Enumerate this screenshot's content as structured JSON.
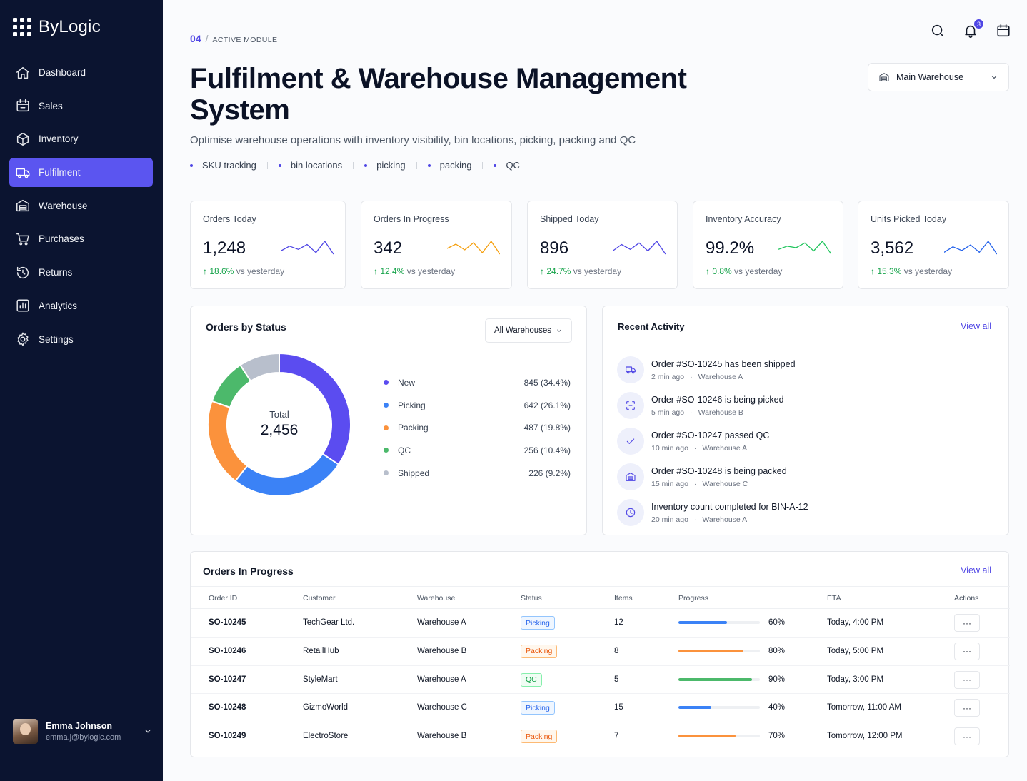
{
  "brand": {
    "name": "ByLogic"
  },
  "sidebar": {
    "items": [
      {
        "label": "Dashboard",
        "icon": "home-icon",
        "active": false
      },
      {
        "label": "Sales",
        "icon": "sales-icon",
        "active": false
      },
      {
        "label": "Inventory",
        "icon": "box-icon",
        "active": false
      },
      {
        "label": "Fulfilment",
        "icon": "truck-icon",
        "active": true
      },
      {
        "label": "Warehouse",
        "icon": "warehouse-icon",
        "active": false
      },
      {
        "label": "Purchases",
        "icon": "cart-icon",
        "active": false
      },
      {
        "label": "Returns",
        "icon": "returns-icon",
        "active": false
      },
      {
        "label": "Analytics",
        "icon": "analytics-icon",
        "active": false
      },
      {
        "label": "Settings",
        "icon": "gear-icon",
        "active": false
      }
    ],
    "user": {
      "name": "Emma Johnson",
      "email": "emma.j@bylogic.com"
    }
  },
  "header": {
    "crumb_number": "04",
    "crumb_separator": "/",
    "crumb_text": "ACTIVE MODULE",
    "title": "Fulfilment & Warehouse Management System",
    "subtitle": "Optimise warehouse operations with inventory visibility, bin locations, picking, packing and QC",
    "tags": [
      "SKU tracking",
      "bin locations",
      "picking",
      "packing",
      "QC"
    ],
    "notification_count": "3",
    "warehouse_select": "Main Warehouse"
  },
  "kpis": [
    {
      "label": "Orders Today",
      "value": "1,248",
      "delta": "18.6%",
      "delta_suffix": "vs yesterday",
      "color": "#4f46e5",
      "spark": [
        6,
        9,
        7,
        10,
        5,
        12,
        4
      ]
    },
    {
      "label": "Orders In Progress",
      "value": "342",
      "delta": "12.4%",
      "delta_suffix": "vs yesterday",
      "color": "#f59e0b",
      "spark": [
        7,
        10,
        6,
        11,
        4,
        12,
        3
      ]
    },
    {
      "label": "Shipped Today",
      "value": "896",
      "delta": "24.7%",
      "delta_suffix": "vs yesterday",
      "color": "#4f46e5",
      "spark": [
        5,
        9,
        6,
        10,
        5,
        11,
        3
      ]
    },
    {
      "label": "Inventory Accuracy",
      "value": "99.2%",
      "delta": "0.8%",
      "delta_suffix": "vs yesterday",
      "color": "#22c55e",
      "spark": [
        7,
        9,
        8,
        11,
        6,
        12,
        4
      ]
    },
    {
      "label": "Units Picked Today",
      "value": "3,562",
      "delta": "15.3%",
      "delta_suffix": "vs yesterday",
      "color": "#2563eb",
      "spark": [
        5,
        8,
        6,
        9,
        5,
        11,
        4
      ]
    }
  ],
  "orders_by_status": {
    "title": "Orders by Status",
    "filter": "All Warehouses",
    "total_label": "Total",
    "total_value": "2,456",
    "chart_data": {
      "type": "pie",
      "categories": [
        "New",
        "Picking",
        "Packing",
        "QC",
        "Shipped"
      ],
      "values": [
        845,
        642,
        487,
        256,
        226
      ],
      "labels": [
        "845 (34.4%)",
        "642 (26.1%)",
        "487 (19.8%)",
        "256 (10.4%)",
        "226 (9.2%)"
      ],
      "colors": [
        "#5b4cf0",
        "#3b82f6",
        "#fb923c",
        "#4cb96b",
        "#b8bfcc"
      ],
      "legend": "right"
    }
  },
  "recent_activity": {
    "title": "Recent Activity",
    "view_all": "View all",
    "items": [
      {
        "icon": "truck-icon",
        "text": "Order #SO-10245 has been shipped",
        "time": "2 min ago",
        "warehouse": "Warehouse A"
      },
      {
        "icon": "scan-icon",
        "text": "Order #SO-10246 is being picked",
        "time": "5 min ago",
        "warehouse": "Warehouse B"
      },
      {
        "icon": "check-icon",
        "text": "Order #SO-10247 passed QC",
        "time": "10 min ago",
        "warehouse": "Warehouse A"
      },
      {
        "icon": "warehouse-icon",
        "text": "Order #SO-10248 is being packed",
        "time": "15 min ago",
        "warehouse": "Warehouse C"
      },
      {
        "icon": "clock-icon",
        "text": "Inventory count completed for BIN-A-12",
        "time": "20 min ago",
        "warehouse": "Warehouse A"
      }
    ]
  },
  "orders_in_progress": {
    "title": "Orders In Progress",
    "view_all": "View all",
    "columns": [
      "Order ID",
      "Customer",
      "Warehouse",
      "Status",
      "Items",
      "Progress",
      "ETA",
      "Actions"
    ],
    "rows": [
      {
        "id": "SO-10245",
        "customer": "TechGear Ltd.",
        "warehouse": "Warehouse A",
        "status": "Picking",
        "items": "12",
        "progress": 60,
        "progress_label": "60%",
        "eta": "Today, 4:00 PM",
        "color": "#3b82f6"
      },
      {
        "id": "SO-10246",
        "customer": "RetailHub",
        "warehouse": "Warehouse B",
        "status": "Packing",
        "items": "8",
        "progress": 80,
        "progress_label": "80%",
        "eta": "Today, 5:00 PM",
        "color": "#fb923c"
      },
      {
        "id": "SO-10247",
        "customer": "StyleMart",
        "warehouse": "Warehouse A",
        "status": "QC",
        "items": "5",
        "progress": 90,
        "progress_label": "90%",
        "eta": "Today, 3:00 PM",
        "color": "#4cb96b"
      },
      {
        "id": "SO-10248",
        "customer": "GizmoWorld",
        "warehouse": "Warehouse C",
        "status": "Picking",
        "items": "15",
        "progress": 40,
        "progress_label": "40%",
        "eta": "Tomorrow, 11:00 AM",
        "color": "#3b82f6"
      },
      {
        "id": "SO-10249",
        "customer": "ElectroStore",
        "warehouse": "Warehouse B",
        "status": "Packing",
        "items": "7",
        "progress": 70,
        "progress_label": "70%",
        "eta": "Tomorrow, 12:00 PM",
        "color": "#fb923c"
      }
    ],
    "actions_label": "···"
  }
}
